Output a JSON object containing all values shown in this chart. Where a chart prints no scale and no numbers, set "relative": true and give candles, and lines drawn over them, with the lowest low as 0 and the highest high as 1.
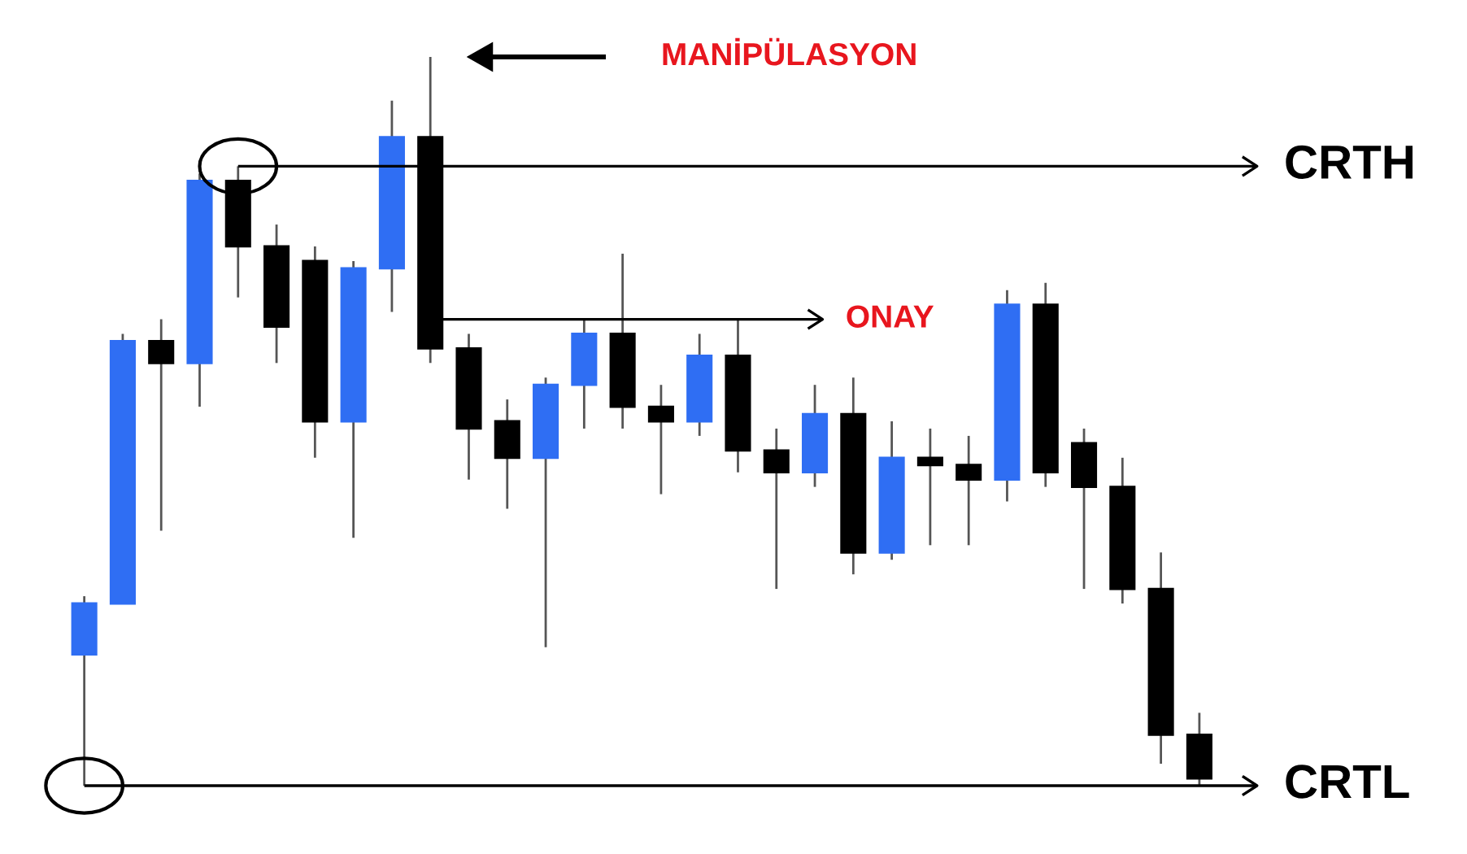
{
  "chart_data": {
    "type": "candlestick",
    "relative": true,
    "categories": [
      null,
      null,
      null,
      null,
      null,
      null,
      null,
      null,
      null,
      null,
      null,
      null,
      null,
      null,
      null,
      null,
      null,
      null,
      null,
      null,
      null,
      null,
      null,
      null,
      null,
      null,
      null,
      null,
      null,
      null
    ],
    "ohlc": [
      [
        0.18,
        0.26,
        0.0,
        0.25
      ],
      [
        0.25,
        0.62,
        0.25,
        0.61
      ],
      [
        0.61,
        0.64,
        0.35,
        0.58
      ],
      [
        0.58,
        0.84,
        0.52,
        0.83
      ],
      [
        0.83,
        0.85,
        0.67,
        0.74
      ],
      [
        0.74,
        0.77,
        0.58,
        0.63
      ],
      [
        0.72,
        0.74,
        0.45,
        0.5
      ],
      [
        0.5,
        0.72,
        0.34,
        0.71
      ],
      [
        0.71,
        0.94,
        0.65,
        0.89
      ],
      [
        0.89,
        1.0,
        0.58,
        0.6
      ],
      [
        0.6,
        0.62,
        0.42,
        0.49
      ],
      [
        0.5,
        0.53,
        0.38,
        0.45
      ],
      [
        0.45,
        0.56,
        0.19,
        0.55
      ],
      [
        0.55,
        0.64,
        0.49,
        0.62
      ],
      [
        0.62,
        0.73,
        0.49,
        0.52
      ],
      [
        0.52,
        0.55,
        0.4,
        0.5
      ],
      [
        0.5,
        0.62,
        0.48,
        0.59
      ],
      [
        0.59,
        0.64,
        0.43,
        0.46
      ],
      [
        0.46,
        0.49,
        0.27,
        0.43
      ],
      [
        0.43,
        0.55,
        0.41,
        0.51
      ],
      [
        0.51,
        0.56,
        0.29,
        0.32
      ],
      [
        0.32,
        0.5,
        0.31,
        0.45
      ],
      [
        0.45,
        0.49,
        0.33,
        0.44
      ],
      [
        0.44,
        0.48,
        0.33,
        0.42
      ],
      [
        0.42,
        0.68,
        0.39,
        0.66
      ],
      [
        0.66,
        0.69,
        0.41,
        0.43
      ],
      [
        0.47,
        0.49,
        0.27,
        0.41
      ],
      [
        0.41,
        0.45,
        0.25,
        0.27
      ],
      [
        0.27,
        0.32,
        0.03,
        0.07
      ],
      [
        0.07,
        0.1,
        0.0,
        0.01
      ]
    ],
    "colors": [
      "#2f6ef3",
      "#2f6ef3",
      "#000000",
      "#2f6ef3",
      "#000000",
      "#000000",
      "#000000",
      "#2f6ef3",
      "#2f6ef3",
      "#000000",
      "#000000",
      "#000000",
      "#2f6ef3",
      "#2f6ef3",
      "#000000",
      "#000000",
      "#2f6ef3",
      "#000000",
      "#000000",
      "#2f6ef3",
      "#000000",
      "#2f6ef3",
      "#000000",
      "#000000",
      "#2f6ef3",
      "#000000",
      "#000000",
      "#000000",
      "#000000",
      "#000000"
    ],
    "ref_lines": [
      {
        "axis": "y",
        "value": 0.85,
        "label": "CRTH",
        "color": "#000000"
      },
      {
        "axis": "y",
        "value": 0.64,
        "color": "#000000"
      },
      {
        "axis": "y",
        "value": 0.0,
        "label": "CRTL",
        "color": "#000000"
      }
    ],
    "annotations": [
      "MANİPÜLASYON",
      "ONAY"
    ]
  }
}
